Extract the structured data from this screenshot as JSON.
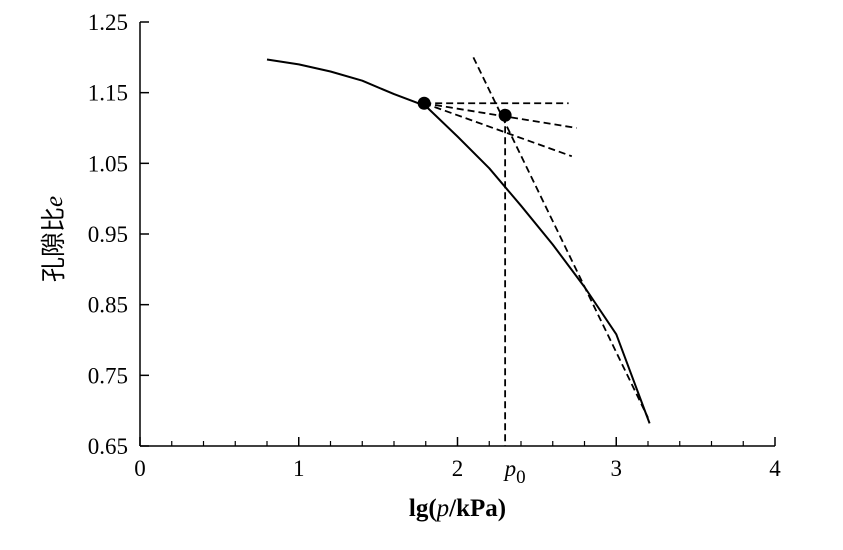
{
  "chart_data": {
    "type": "line",
    "xlabel": {
      "prefix": "lg(",
      "var": "p",
      "suffix": "/kPa)"
    },
    "ylabel": {
      "text": "孔隙比",
      "var": "e"
    },
    "xlim": [
      0,
      4
    ],
    "ylim": [
      0.65,
      1.25
    ],
    "x_ticks": [
      {
        "value": 0,
        "label": "0"
      },
      {
        "value": 1,
        "label": "1"
      },
      {
        "value": 2,
        "label": "2"
      },
      {
        "value": 3,
        "label": "3"
      },
      {
        "value": 4,
        "label": "4"
      }
    ],
    "y_ticks": [
      {
        "value": 0.65,
        "label": "0.65"
      },
      {
        "value": 0.75,
        "label": "0.75"
      },
      {
        "value": 0.85,
        "label": "0.85"
      },
      {
        "value": 0.95,
        "label": "0.95"
      },
      {
        "value": 1.05,
        "label": "1.05"
      },
      {
        "value": 1.15,
        "label": "1.15"
      },
      {
        "value": 1.25,
        "label": "1.25"
      }
    ],
    "minor_x_step": 0.2,
    "series": [
      {
        "style": "solid",
        "x": [
          0.8,
          1.0,
          1.2,
          1.4,
          1.6,
          1.8,
          2.0,
          2.2,
          2.4,
          2.6,
          2.8,
          3.0,
          3.21
        ],
        "y": [
          1.197,
          1.19,
          1.18,
          1.167,
          1.148,
          1.131,
          1.088,
          1.043,
          0.99,
          0.935,
          0.875,
          0.808,
          0.682
        ]
      }
    ],
    "dashed_lines": [
      {
        "name": "horizontal-line",
        "x": [
          1.79,
          2.7
        ],
        "y": [
          1.135,
          1.135
        ]
      },
      {
        "name": "bisector-line",
        "x": [
          1.79,
          2.75
        ],
        "y": [
          1.135,
          1.1
        ]
      },
      {
        "name": "tangent-line",
        "x": [
          1.79,
          2.72
        ],
        "y": [
          1.135,
          1.06
        ]
      },
      {
        "name": "virgin-compression-line",
        "x": [
          2.1,
          3.2
        ],
        "y": [
          1.2,
          0.69
        ]
      },
      {
        "name": "p0-drop-line",
        "x": [
          2.3,
          2.3
        ],
        "y": [
          1.118,
          0.65
        ]
      }
    ],
    "points": [
      {
        "name": "max-curvature-point",
        "x": 1.79,
        "y": 1.135
      },
      {
        "name": "intersection-point",
        "x": 2.3,
        "y": 1.118
      }
    ],
    "annotations": [
      {
        "name": "p0-label",
        "var": "p",
        "sub": "0",
        "x": 2.3
      }
    ]
  }
}
